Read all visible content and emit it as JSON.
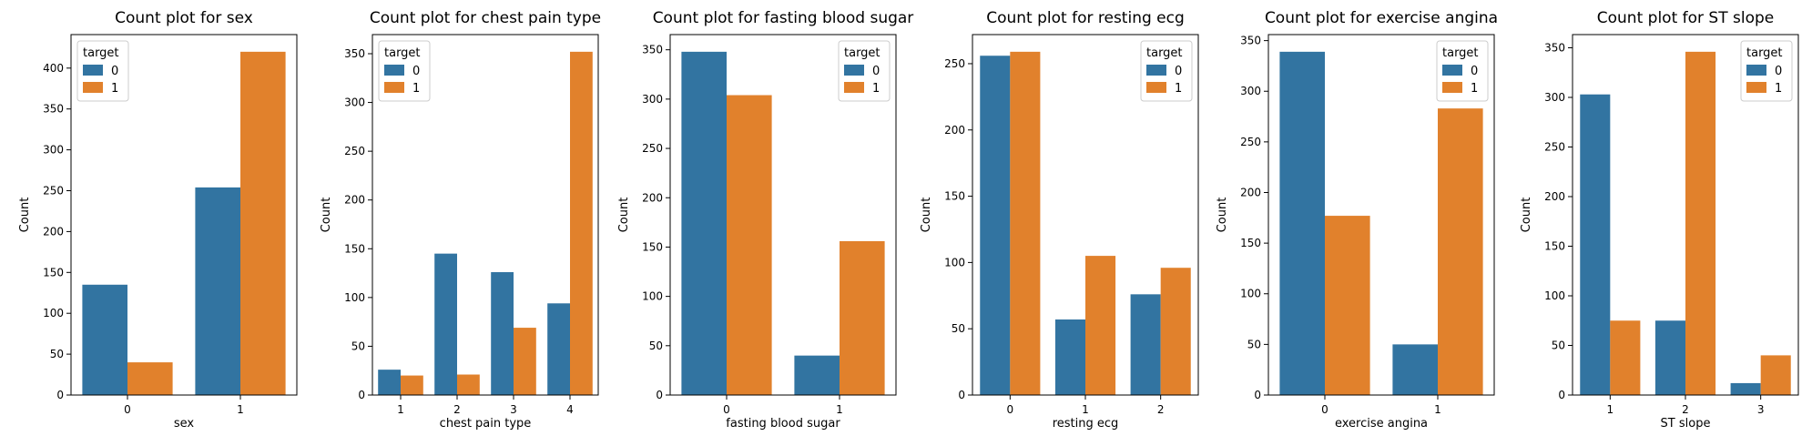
{
  "colors": {
    "series0": "#3274a1",
    "series1": "#e1812c"
  },
  "chart_data": [
    {
      "type": "bar",
      "title": "Count plot for sex",
      "xlabel": "sex",
      "ylabel": "Count",
      "categories": [
        "0",
        "1"
      ],
      "series": [
        {
          "name": "0",
          "values": [
            135,
            254
          ]
        },
        {
          "name": "1",
          "values": [
            40,
            420
          ]
        }
      ],
      "ylim": [
        0,
        441
      ],
      "yticks": [
        0,
        50,
        100,
        150,
        200,
        250,
        300,
        350,
        400
      ],
      "legend": {
        "title": "target",
        "position": "top-left"
      }
    },
    {
      "type": "bar",
      "title": "Count plot for chest pain type",
      "xlabel": "chest pain type",
      "ylabel": "Count",
      "categories": [
        "1",
        "2",
        "3",
        "4"
      ],
      "series": [
        {
          "name": "0",
          "values": [
            26,
            145,
            126,
            94
          ]
        },
        {
          "name": "1",
          "values": [
            20,
            21,
            69,
            352
          ]
        }
      ],
      "ylim": [
        0,
        369.6
      ],
      "yticks": [
        0,
        50,
        100,
        150,
        200,
        250,
        300,
        350
      ],
      "legend": {
        "title": "target",
        "position": "top-left"
      }
    },
    {
      "type": "bar",
      "title": "Count plot for fasting blood sugar",
      "xlabel": "fasting blood sugar",
      "ylabel": "Count",
      "categories": [
        "0",
        "1"
      ],
      "series": [
        {
          "name": "0",
          "values": [
            348,
            40
          ]
        },
        {
          "name": "1",
          "values": [
            304,
            156
          ]
        }
      ],
      "ylim": [
        0,
        365.4
      ],
      "yticks": [
        0,
        50,
        100,
        150,
        200,
        250,
        300,
        350
      ],
      "legend": {
        "title": "target",
        "position": "top-right"
      }
    },
    {
      "type": "bar",
      "title": "Count plot for resting ecg",
      "xlabel": "resting ecg",
      "ylabel": "Count",
      "categories": [
        "0",
        "1",
        "2"
      ],
      "series": [
        {
          "name": "0",
          "values": [
            256,
            57,
            76
          ]
        },
        {
          "name": "1",
          "values": [
            259,
            105,
            96
          ]
        }
      ],
      "ylim": [
        0,
        271.95
      ],
      "yticks": [
        0,
        50,
        100,
        150,
        200,
        250
      ],
      "legend": {
        "title": "target",
        "position": "top-right"
      }
    },
    {
      "type": "bar",
      "title": "Count plot for exercise angina",
      "xlabel": "exercise angina",
      "ylabel": "Count",
      "categories": [
        "0",
        "1"
      ],
      "series": [
        {
          "name": "0",
          "values": [
            339,
            50
          ]
        },
        {
          "name": "1",
          "values": [
            177,
            283
          ]
        }
      ],
      "ylim": [
        0,
        355.95
      ],
      "yticks": [
        0,
        50,
        100,
        150,
        200,
        250,
        300,
        350
      ],
      "legend": {
        "title": "target",
        "position": "top-right"
      }
    },
    {
      "type": "bar",
      "title": "Count plot for ST slope",
      "xlabel": "ST slope",
      "ylabel": "Count",
      "categories": [
        "1",
        "2",
        "3"
      ],
      "series": [
        {
          "name": "0",
          "values": [
            303,
            75,
            12
          ]
        },
        {
          "name": "1",
          "values": [
            75,
            346,
            40
          ]
        }
      ],
      "ylim": [
        0,
        363.3
      ],
      "yticks": [
        0,
        50,
        100,
        150,
        200,
        250,
        300,
        350
      ],
      "legend": {
        "title": "target",
        "position": "top-right"
      }
    }
  ]
}
